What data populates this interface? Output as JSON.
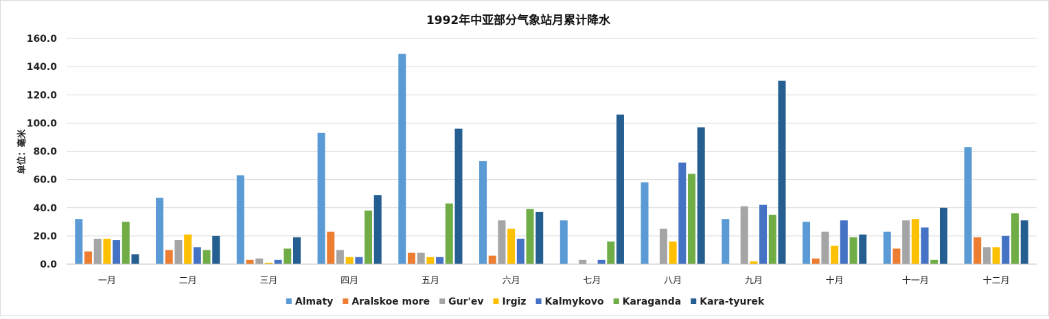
{
  "chart_data": {
    "type": "bar",
    "title": "1992年中亚部分气象站月累计降水",
    "xlabel": "",
    "ylabel": "单位：毫米",
    "ylim": [
      0,
      160
    ],
    "yticks": [
      "0.0",
      "20.0",
      "40.0",
      "60.0",
      "80.0",
      "100.0",
      "120.0",
      "140.0",
      "160.0"
    ],
    "grid": true,
    "legend_position": "bottom",
    "categories": [
      "一月",
      "二月",
      "三月",
      "四月",
      "五月",
      "六月",
      "七月",
      "八月",
      "九月",
      "十月",
      "十一月",
      "十二月"
    ],
    "series": [
      {
        "name": "Almaty",
        "color": "#5B9BD5",
        "values": [
          32,
          47,
          63,
          93,
          149,
          73,
          31,
          58,
          32,
          30,
          23,
          83
        ]
      },
      {
        "name": "Aralskoe more",
        "color": "#ED7D31",
        "values": [
          9,
          10,
          3,
          23,
          8,
          6,
          0,
          0,
          0,
          4,
          11,
          19
        ]
      },
      {
        "name": "Gur'ev",
        "color": "#A5A5A5",
        "values": [
          18,
          17,
          4,
          10,
          8,
          31,
          3,
          25,
          41,
          23,
          31,
          12
        ]
      },
      {
        "name": "Irgiz",
        "color": "#FFC000",
        "values": [
          18,
          21,
          1,
          5,
          5,
          25,
          0,
          16,
          2,
          13,
          32,
          12
        ]
      },
      {
        "name": "Kalmykovo",
        "color": "#4472C4",
        "values": [
          17,
          12,
          3,
          5,
          5,
          18,
          3,
          72,
          42,
          31,
          26,
          20
        ]
      },
      {
        "name": "Karaganda",
        "color": "#70AD47",
        "values": [
          30,
          10,
          11,
          38,
          43,
          39,
          16,
          64,
          35,
          19,
          3,
          36
        ]
      },
      {
        "name": "Kara-tyurek",
        "color": "#255E91",
        "values": [
          7,
          20,
          19,
          49,
          96,
          37,
          106,
          97,
          130,
          21,
          40,
          31
        ]
      }
    ]
  }
}
